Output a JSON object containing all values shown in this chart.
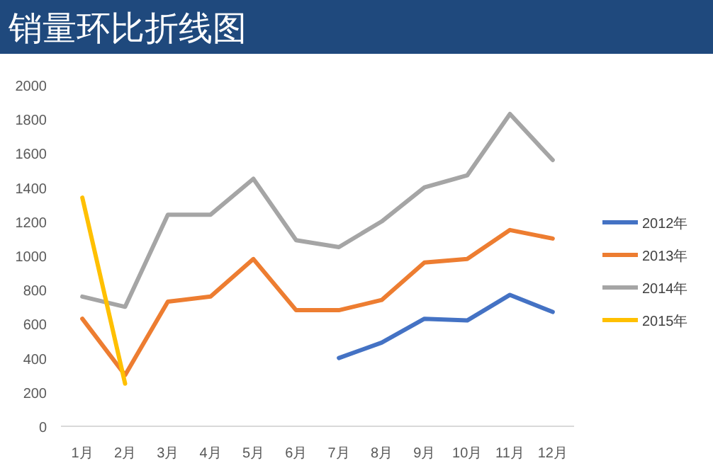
{
  "chart_data": {
    "type": "line",
    "title": "销量环比折线图",
    "categories": [
      "1月",
      "2月",
      "3月",
      "4月",
      "5月",
      "6月",
      "7月",
      "8月",
      "9月",
      "10月",
      "11月",
      "12月"
    ],
    "series": [
      {
        "name": "2012年",
        "color": "#4472c4",
        "values": [
          null,
          null,
          null,
          null,
          null,
          null,
          400,
          490,
          630,
          620,
          770,
          670
        ]
      },
      {
        "name": "2013年",
        "color": "#ed7d31",
        "values": [
          630,
          300,
          730,
          760,
          980,
          680,
          680,
          740,
          960,
          980,
          1150,
          1100
        ]
      },
      {
        "name": "2014年",
        "color": "#a5a5a5",
        "values": [
          760,
          700,
          1240,
          1240,
          1450,
          1090,
          1050,
          1200,
          1400,
          1470,
          1830,
          1560
        ]
      },
      {
        "name": "2015年",
        "color": "#ffc000",
        "values": [
          1340,
          250,
          null,
          null,
          null,
          null,
          null,
          null,
          null,
          null,
          null,
          null
        ]
      }
    ],
    "ylim": [
      0,
      2000
    ],
    "yticks": [
      0,
      200,
      400,
      600,
      800,
      1000,
      1200,
      1400,
      1600,
      1800,
      2000
    ],
    "grid": false,
    "legend": "right",
    "marker": "none",
    "line_style": "solid"
  }
}
